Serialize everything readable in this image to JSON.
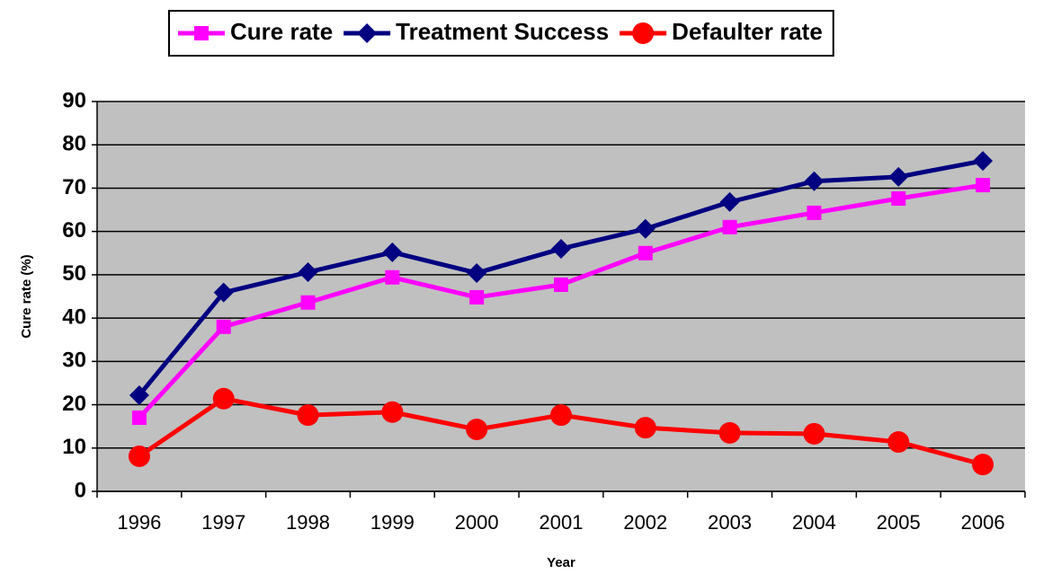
{
  "chart_data": {
    "type": "line",
    "categories": [
      "1996",
      "1997",
      "1998",
      "1999",
      "2000",
      "2001",
      "2002",
      "2003",
      "2004",
      "2005",
      "2006"
    ],
    "series": [
      {
        "name": "Cure rate",
        "color": "#ff00ff",
        "marker": "square",
        "values": [
          17.0,
          38.0,
          43.6,
          49.4,
          44.8,
          47.7,
          55.0,
          61.0,
          64.3,
          67.6,
          70.7
        ]
      },
      {
        "name": "Treatment Success",
        "color": "#000080",
        "marker": "diamond",
        "values": [
          22.2,
          45.9,
          50.6,
          55.2,
          50.4,
          56.0,
          60.6,
          66.8,
          71.6,
          72.6,
          76.3
        ]
      },
      {
        "name": "Defaulter rate",
        "color": "#ff0000",
        "marker": "circle",
        "values": [
          8.1,
          21.4,
          17.6,
          18.3,
          14.3,
          17.6,
          14.7,
          13.5,
          13.3,
          11.4,
          6.2
        ]
      }
    ],
    "x_label": "Year",
    "y_label": "Cure rate (%)",
    "ylim": [
      0,
      90
    ],
    "yticks": [
      0,
      10,
      20,
      30,
      40,
      50,
      60,
      70,
      80,
      90
    ],
    "grid": true,
    "legend": "top",
    "plot_background": "#c0c0c0"
  }
}
